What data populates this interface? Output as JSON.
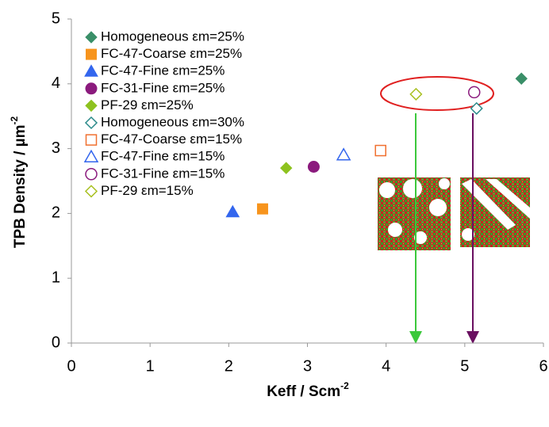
{
  "chart_data": {
    "type": "scatter",
    "x_label": {
      "text": "Keff / Scm",
      "superscript": "-2"
    },
    "y_label": {
      "text": "TPB Density / µm",
      "superscript": "-2"
    },
    "xlim": [
      0,
      6
    ],
    "xticks": [
      0,
      1,
      2,
      3,
      4,
      5,
      6
    ],
    "ylim": [
      0,
      5
    ],
    "yticks": [
      0,
      1,
      2,
      3,
      4,
      5
    ],
    "grid": false,
    "legend": "upper left",
    "series": [
      {
        "name": "Homogeneous εm=25%",
        "color": "#3a8f68",
        "marker": "diamond",
        "filled": true,
        "x": [
          5.72
        ],
        "values": [
          4.08
        ]
      },
      {
        "name": "FC-47-Coarse εm=25%",
        "color": "#f7941d",
        "marker": "square",
        "filled": true,
        "x": [
          2.43
        ],
        "values": [
          2.07
        ]
      },
      {
        "name": "FC-47-Fine εm=25%",
        "color": "#3366ee",
        "marker": "triangle",
        "filled": true,
        "x": [
          2.05
        ],
        "values": [
          2.02
        ]
      },
      {
        "name": "FC-31-Fine εm=25%",
        "color": "#8b1a7d",
        "marker": "circle",
        "filled": true,
        "x": [
          3.08
        ],
        "values": [
          2.72
        ]
      },
      {
        "name": "PF-29 εm=25%",
        "color": "#8dc21f",
        "marker": "diamond",
        "filled": true,
        "x": [
          2.73
        ],
        "values": [
          2.7
        ]
      },
      {
        "name": "Homogeneous εm=30%",
        "color": "#2a8a8a",
        "marker": "diamond",
        "filled": false,
        "x": [
          5.15
        ],
        "values": [
          3.62
        ]
      },
      {
        "name": "FC-47-Coarse εm=15%",
        "color": "#f07030",
        "marker": "square",
        "filled": false,
        "x": [
          3.93
        ],
        "values": [
          2.97
        ]
      },
      {
        "name": "FC-47-Fine εm=15%",
        "color": "#3366ee",
        "marker": "triangle",
        "filled": false,
        "x": [
          3.46
        ],
        "values": [
          2.9
        ]
      },
      {
        "name": "FC-31-Fine εm=15%",
        "color": "#8b1a7d",
        "marker": "circle",
        "filled": false,
        "x": [
          5.12
        ],
        "values": [
          3.87
        ]
      },
      {
        "name": "PF-29 εm=15%",
        "color": "#a8c020",
        "marker": "diamond",
        "filled": false,
        "x": [
          4.38
        ],
        "values": [
          3.84
        ]
      }
    ]
  }
}
